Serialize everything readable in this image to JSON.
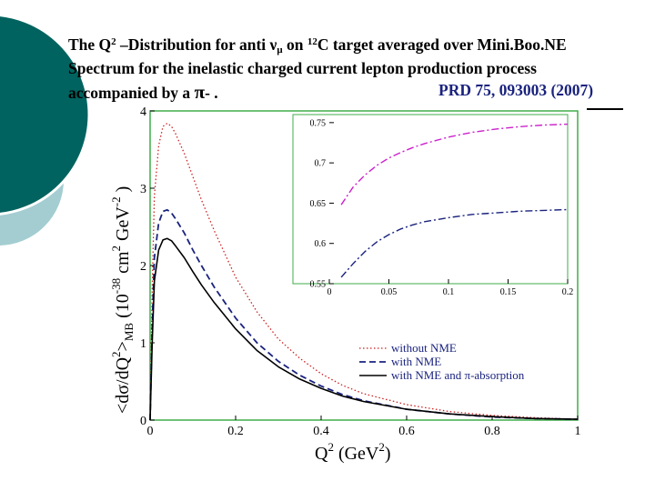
{
  "title": {
    "line1_pre": "The Q",
    "line1_sup": "2",
    "line1_mid": " –Distribution for anti ",
    "nu": "ν",
    "mu": "μ",
    "line1_mid2": " on ",
    "c_sup": "12",
    "line1_post": "C target averaged over Mini.Boo.NE",
    "line2": "Spectrum for the inelastic charged current lepton production process",
    "line3_pre": "accompanied by a ",
    "pi": "π",
    "line3_post": "- ."
  },
  "reference": "PRD 75, 093003 (2007)",
  "colors": {
    "deco_dark": "#00635f",
    "deco_light": "#a3cdd1",
    "frame": "#3fae49",
    "text_blue": "#1a237e"
  },
  "chart_data": [
    {
      "type": "line",
      "xlabel": "Q² (GeV²)",
      "ylabel": "<dσ/dQ²>MB (10⁻³⁸ cm² GeV⁻²)",
      "xlim": [
        0,
        1
      ],
      "ylim": [
        0,
        4
      ],
      "xticks": [
        "0",
        "0.2",
        "0.4",
        "0.6",
        "0.8",
        "1"
      ],
      "yticks": [
        "0",
        "1",
        "2",
        "3",
        "4"
      ],
      "legend_position": "bottom-right",
      "series": [
        {
          "name": "without NME",
          "style": "dotted",
          "color": "#cc2222",
          "x": [
            0,
            0.005,
            0.01,
            0.02,
            0.03,
            0.04,
            0.05,
            0.06,
            0.08,
            0.1,
            0.12,
            0.15,
            0.2,
            0.25,
            0.3,
            0.35,
            0.4,
            0.45,
            0.5,
            0.6,
            0.7,
            0.8,
            0.9,
            1.0
          ],
          "y": [
            0,
            1.7,
            2.9,
            3.55,
            3.8,
            3.84,
            3.8,
            3.7,
            3.45,
            3.15,
            2.85,
            2.45,
            1.85,
            1.4,
            1.05,
            0.8,
            0.6,
            0.45,
            0.34,
            0.2,
            0.11,
            0.06,
            0.03,
            0.01
          ]
        },
        {
          "name": "with NME",
          "style": "dashed",
          "color": "#1a237e",
          "x": [
            0,
            0.005,
            0.01,
            0.02,
            0.03,
            0.04,
            0.05,
            0.06,
            0.08,
            0.1,
            0.12,
            0.15,
            0.2,
            0.25,
            0.3,
            0.35,
            0.4,
            0.45,
            0.5,
            0.6,
            0.7,
            0.8,
            0.9,
            1.0
          ],
          "y": [
            0,
            1.2,
            2.1,
            2.55,
            2.7,
            2.72,
            2.68,
            2.6,
            2.42,
            2.2,
            2.0,
            1.72,
            1.32,
            1.0,
            0.76,
            0.58,
            0.44,
            0.33,
            0.25,
            0.14,
            0.08,
            0.04,
            0.02,
            0.01
          ]
        },
        {
          "name": "with NME and π-absorption",
          "style": "solid",
          "color": "#000000",
          "x": [
            0,
            0.005,
            0.01,
            0.02,
            0.03,
            0.04,
            0.05,
            0.06,
            0.08,
            0.1,
            0.12,
            0.15,
            0.2,
            0.25,
            0.3,
            0.35,
            0.4,
            0.45,
            0.5,
            0.6,
            0.7,
            0.8,
            0.9,
            1.0
          ],
          "y": [
            0,
            1.0,
            1.8,
            2.2,
            2.33,
            2.35,
            2.32,
            2.25,
            2.1,
            1.92,
            1.75,
            1.52,
            1.18,
            0.9,
            0.69,
            0.53,
            0.41,
            0.31,
            0.24,
            0.14,
            0.08,
            0.045,
            0.02,
            0.01
          ]
        }
      ]
    },
    {
      "type": "line",
      "xlim": [
        0,
        0.2
      ],
      "ylim": [
        0.55,
        0.76
      ],
      "xticks": [
        "0",
        "0.05",
        "0.1",
        "0.15",
        "0.2"
      ],
      "yticks": [
        "0.55",
        "0.6",
        "0.65",
        "0.7",
        "0.75"
      ],
      "series": [
        {
          "style": "dash-dot",
          "color": "#cc22cc",
          "x": [
            0.01,
            0.02,
            0.03,
            0.04,
            0.05,
            0.06,
            0.07,
            0.08,
            0.1,
            0.12,
            0.14,
            0.16,
            0.18,
            0.2
          ],
          "y": [
            0.648,
            0.67,
            0.685,
            0.697,
            0.706,
            0.713,
            0.719,
            0.724,
            0.732,
            0.738,
            0.742,
            0.745,
            0.747,
            0.748
          ]
        },
        {
          "style": "dash-dot",
          "color": "#1a237e",
          "x": [
            0.01,
            0.02,
            0.03,
            0.04,
            0.05,
            0.06,
            0.07,
            0.08,
            0.1,
            0.12,
            0.14,
            0.16,
            0.18,
            0.2
          ],
          "y": [
            0.558,
            0.575,
            0.59,
            0.602,
            0.611,
            0.618,
            0.623,
            0.627,
            0.632,
            0.636,
            0.638,
            0.64,
            0.641,
            0.642
          ]
        }
      ]
    }
  ]
}
